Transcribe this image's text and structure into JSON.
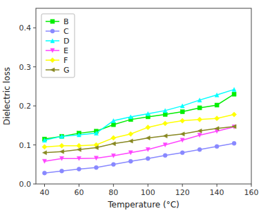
{
  "chart_data": {
    "type": "line",
    "x_label": "Temperature (°C)",
    "y_label": "Dielectric loss",
    "x": [
      40,
      50,
      60,
      70,
      80,
      90,
      100,
      110,
      120,
      130,
      140,
      150
    ],
    "series": [
      {
        "name": "B",
        "color": "#00ee00",
        "marker": "square",
        "values": [
          0.115,
          0.122,
          0.13,
          0.135,
          0.152,
          0.165,
          0.172,
          0.178,
          0.185,
          0.195,
          0.202,
          0.23
        ]
      },
      {
        "name": "C",
        "color": "#8888ff",
        "marker": "circle",
        "values": [
          0.028,
          0.033,
          0.038,
          0.042,
          0.05,
          0.058,
          0.065,
          0.073,
          0.08,
          0.088,
          0.096,
          0.104
        ]
      },
      {
        "name": "D",
        "color": "#00ffff",
        "marker": "triangle-up",
        "values": [
          0.112,
          0.122,
          0.126,
          0.13,
          0.162,
          0.172,
          0.18,
          0.188,
          0.2,
          0.215,
          0.228,
          0.242
        ]
      },
      {
        "name": "E",
        "color": "#ff44ff",
        "marker": "triangle-down",
        "values": [
          0.058,
          0.065,
          0.065,
          0.066,
          0.072,
          0.08,
          0.088,
          0.1,
          0.112,
          0.125,
          0.135,
          0.146
        ]
      },
      {
        "name": "F",
        "color": "#ffff00",
        "marker": "diamond",
        "values": [
          0.095,
          0.098,
          0.098,
          0.1,
          0.118,
          0.128,
          0.145,
          0.155,
          0.162,
          0.165,
          0.168,
          0.178
        ]
      },
      {
        "name": "G",
        "color": "#888822",
        "marker": "triangle-left",
        "values": [
          0.08,
          0.083,
          0.088,
          0.093,
          0.103,
          0.11,
          0.118,
          0.123,
          0.128,
          0.136,
          0.142,
          0.147
        ]
      }
    ],
    "xlim": [
      35,
      160
    ],
    "ylim": [
      0.0,
      0.45
    ],
    "xticks": [
      40,
      60,
      80,
      100,
      120,
      140,
      160
    ],
    "yticks": [
      {
        "value": 0.0,
        "label": "0.0"
      },
      0.1,
      0.2,
      0.3,
      0.4
    ],
    "grid": false,
    "legend": "upper left"
  }
}
